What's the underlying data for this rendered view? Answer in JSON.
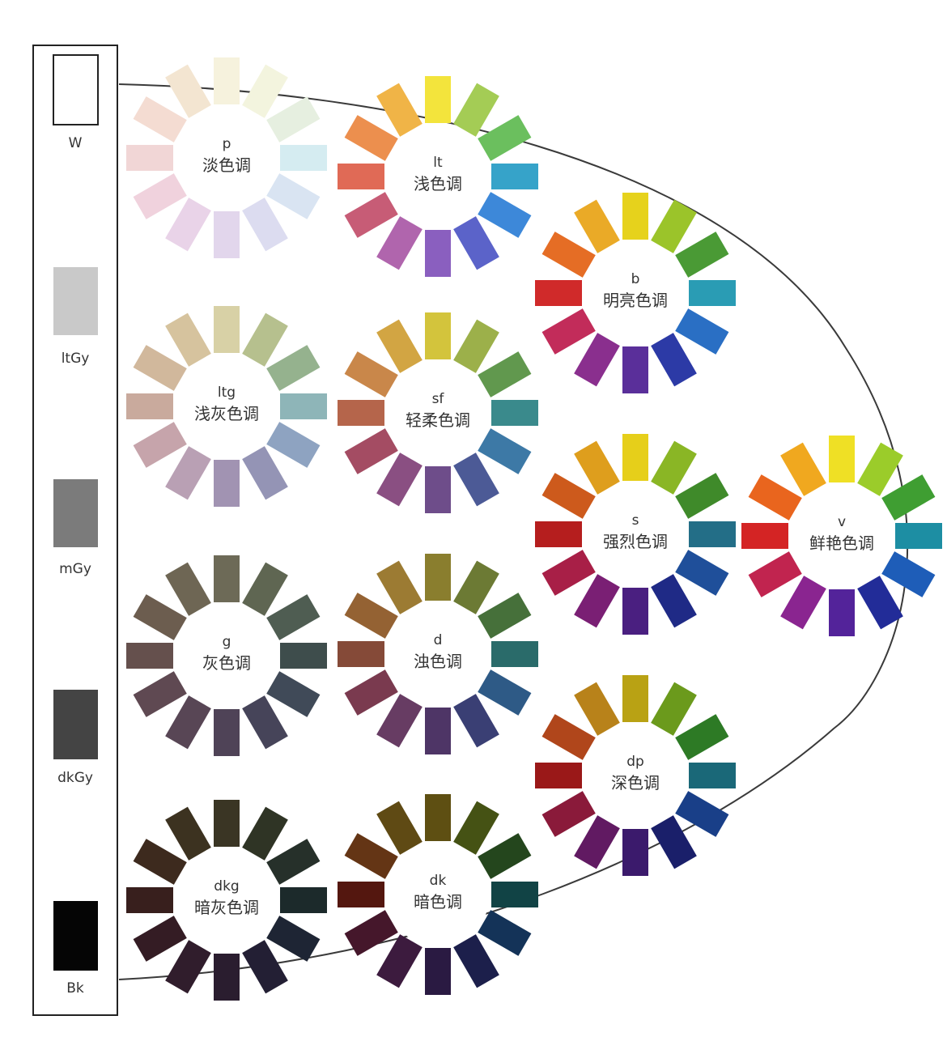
{
  "grayscale": [
    {
      "code": "W",
      "color": "#ffffff"
    },
    {
      "code": "ltGy",
      "color": "#c9c9c9"
    },
    {
      "code": "mGy",
      "color": "#7b7b7b"
    },
    {
      "code": "dkGy",
      "color": "#444444"
    },
    {
      "code": "Bk",
      "color": "#050505"
    }
  ],
  "tones": [
    {
      "code": "p",
      "name": "淡色调",
      "colors": [
        "#f6f2dd",
        "#f3f4de",
        "#e6efe0",
        "#d5ecf1",
        "#d9e4f2",
        "#dcdcf0",
        "#e2d6ec",
        "#e9d3e8",
        "#f0d2dd",
        "#f1d6d6",
        "#f4dcd2",
        "#f3e5d1"
      ]
    },
    {
      "code": "lt",
      "name": "浅色调",
      "colors": [
        "#f3e43c",
        "#a4cc55",
        "#6bbf5e",
        "#36a3c9",
        "#3d88d9",
        "#5b63c9",
        "#8a5fbf",
        "#b065ad",
        "#c75c76",
        "#e06a56",
        "#ec8f4e",
        "#f0b447"
      ]
    },
    {
      "code": "ltg",
      "name": "浅灰色调",
      "colors": [
        "#d8d1a6",
        "#b6c08e",
        "#95b28e",
        "#8eb5b8",
        "#8ea3c1",
        "#9494b5",
        "#a193b2",
        "#b9a0b4",
        "#c6a4ab",
        "#c9aa9d",
        "#d1b89c",
        "#d6c39e"
      ]
    },
    {
      "code": "sf",
      "name": "轻柔色调",
      "colors": [
        "#d3c43c",
        "#9cb04a",
        "#61984e",
        "#3a8a8c",
        "#3d79a6",
        "#4c5a96",
        "#6e4d8a",
        "#8a4f82",
        "#a44c63",
        "#b5654b",
        "#c9874a",
        "#d2a543"
      ]
    },
    {
      "code": "g",
      "name": "灰色调",
      "colors": [
        "#6d6a57",
        "#5f6652",
        "#4f5d52",
        "#3e4d4c",
        "#404a58",
        "#464459",
        "#4f4357",
        "#584655",
        "#5f4952",
        "#65504d",
        "#6c5d4f",
        "#6e6654"
      ]
    },
    {
      "code": "d",
      "name": "浊色调",
      "colors": [
        "#8a7e2e",
        "#6c7a34",
        "#46703a",
        "#2a6b6a",
        "#2e5a86",
        "#3a3f74",
        "#4e3566",
        "#673c63",
        "#7a3a4f",
        "#854a38",
        "#946233",
        "#9c7b33"
      ]
    },
    {
      "code": "dkg",
      "name": "暗灰色调",
      "colors": [
        "#3a3524",
        "#2f3425",
        "#26302a",
        "#1c2a2b",
        "#1e2534",
        "#231f34",
        "#2a1d2f",
        "#301d2c",
        "#341c24",
        "#381f1d",
        "#3d2a1e",
        "#3c3220"
      ]
    },
    {
      "code": "dk",
      "name": "暗色调",
      "colors": [
        "#5e4f12",
        "#455214",
        "#24461d",
        "#114345",
        "#143358",
        "#1c1f4b",
        "#2a1a42",
        "#3c1b3e",
        "#45172b",
        "#54170f",
        "#643515",
        "#5f4a14"
      ]
    },
    {
      "code": "b",
      "name": "明亮色调",
      "colors": [
        "#e6d21c",
        "#9bc42a",
        "#4a9a35",
        "#2a9cb4",
        "#2a6fc4",
        "#2c3aa6",
        "#5a2f9a",
        "#8a2f8e",
        "#c22c5a",
        "#d02a2a",
        "#e56d25",
        "#eaaa27"
      ]
    },
    {
      "code": "s",
      "name": "强烈色调",
      "colors": [
        "#e6cf1a",
        "#8ab625",
        "#3f8a2a",
        "#236e87",
        "#1f4f9a",
        "#1f2a86",
        "#4a1f80",
        "#7a1f74",
        "#a81f47",
        "#b51e1e",
        "#cd5a1c",
        "#de9e1d"
      ]
    },
    {
      "code": "v",
      "name": "鲜艳色调",
      "colors": [
        "#efe025",
        "#9bcc2a",
        "#3f9e32",
        "#1d8ea3",
        "#1e5db8",
        "#222c98",
        "#53239a",
        "#8a2590",
        "#c1244f",
        "#d42424",
        "#e9651e",
        "#f0a81f"
      ]
    },
    {
      "code": "dp",
      "name": "深色调",
      "colors": [
        "#b9a214",
        "#6b9a1c",
        "#2d7a25",
        "#1a6878",
        "#193f88",
        "#1a1f6a",
        "#3b1a6c",
        "#611a62",
        "#8a1a3a",
        "#9a1818",
        "#b0461b",
        "#b8821a"
      ]
    }
  ]
}
